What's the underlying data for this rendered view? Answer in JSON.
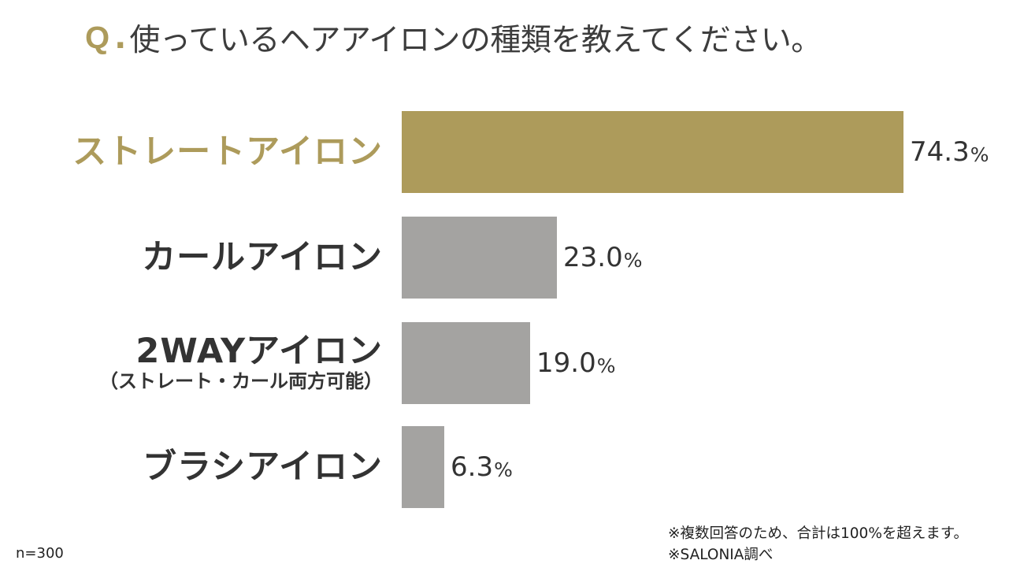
{
  "title": {
    "q_mark": "Q",
    "q_dot": ".",
    "text": "使っているヘアアイロンの種類を教えてください。"
  },
  "colors": {
    "accent": "#ad9b5b",
    "bar_default": "#a4a3a1",
    "text": "#333333"
  },
  "rows": [
    {
      "label": "ストレートアイロン",
      "sublabel": "",
      "value": "74.3",
      "unit": "%",
      "highlight": true
    },
    {
      "label": "カールアイロン",
      "sublabel": "",
      "value": "23.0",
      "unit": "%",
      "highlight": false
    },
    {
      "label": "2WAYアイロン",
      "sublabel": "（ストレート・カール両方可能）",
      "value": "19.0",
      "unit": "%",
      "highlight": false
    },
    {
      "label": "ブラシアイロン",
      "sublabel": "",
      "value": "6.3",
      "unit": "%",
      "highlight": false
    }
  ],
  "footer": {
    "sample_size": "n=300",
    "note_1": "※複数回答のため、合計は100%を超えます。",
    "note_2": "※SALONIA調べ"
  },
  "chart_data": {
    "type": "bar",
    "orientation": "horizontal",
    "title": "Q.使っているヘアアイロンの種類を教えてください。",
    "categories": [
      "ストレートアイロン",
      "カールアイロン",
      "2WAYアイロン（ストレート・カール両方可能）",
      "ブラシアイロン"
    ],
    "values": [
      74.3,
      23.0,
      19.0,
      6.3
    ],
    "unit": "%",
    "xlabel": "",
    "ylabel": "",
    "grid": false,
    "legend": null,
    "highlighted_category": "ストレートアイロン",
    "annotations": [
      "n=300",
      "※複数回答のため、合計は100%を超えます。",
      "※SALONIA調べ"
    ]
  }
}
